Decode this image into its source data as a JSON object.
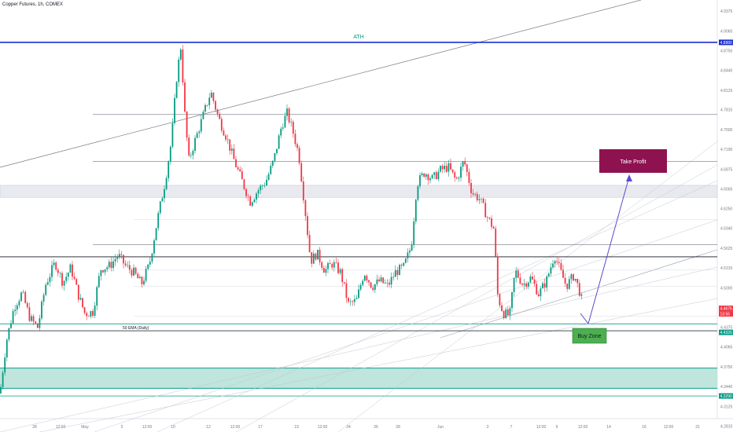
{
  "header": {
    "title": "Copper Futures, 1h, COMEX"
  },
  "colors": {
    "up": "#089981",
    "down": "#f23645",
    "ath_line": "#1a2ecf",
    "resistance": "#131722",
    "zone_fill": "#bfe5dc",
    "zone_line": "#0b9b86",
    "take_profit": "#8e1250",
    "buy_zone": "#4caf50",
    "arrow": "#5b4bd1",
    "grid_axis": "#787b86"
  },
  "annotations": {
    "ath": "ATH",
    "ema": "50 EMA (Daily)",
    "take_profit": "Take Profit",
    "buy_zone": "Buy Zone"
  },
  "price_tags": {
    "ath": "4.8880",
    "current": "4.4675",
    "countdown": "13:56",
    "ema": "4.4320",
    "bottom_zone": "4.3290"
  },
  "chart_data": {
    "type": "candlestick",
    "title": "Copper Futures, 1h, COMEX",
    "y_axis": {
      "ticks": [
        "4.9375",
        "4.9060",
        "4.8750",
        "4.8440",
        "4.8125",
        "4.7815",
        "4.7500",
        "4.7190",
        "4.6875",
        "4.6565",
        "4.6250",
        "4.5940",
        "4.5625",
        "4.5315",
        "4.5000",
        "4.4690",
        "4.4375",
        "4.4065",
        "4.3750",
        "4.3440",
        "4.3125",
        "4.2815"
      ],
      "range": [
        4.272,
        4.955
      ]
    },
    "x_axis": {
      "ticks": [
        "28",
        "12:00",
        "May",
        "5",
        "12:00",
        "10",
        "12",
        "12:00",
        "17",
        "19",
        "12:00",
        "24",
        "26",
        "28",
        "Jun",
        "3",
        "7",
        "12:00",
        "9",
        "12:00",
        "14",
        "16",
        "12:00",
        "21"
      ]
    },
    "levels": [
      {
        "name": "ATH",
        "price": 4.888
      },
      {
        "name": "resistance",
        "price": 4.774
      },
      {
        "name": "resistance",
        "price": 4.7
      },
      {
        "name": "resistance",
        "price": 4.568
      },
      {
        "name": "resistance",
        "price": 4.549
      },
      {
        "name": "50 EMA (Daily)",
        "price": 4.432
      }
    ],
    "zones": [
      {
        "name": "gray zone",
        "top": 4.662,
        "bottom": 4.643
      },
      {
        "name": "demand zone",
        "top": 4.373,
        "bottom": 4.341
      }
    ],
    "last_price": 4.4675,
    "path": [
      [
        0,
        4.333
      ],
      [
        8,
        4.415
      ],
      [
        18,
        4.47
      ],
      [
        28,
        4.492
      ],
      [
        38,
        4.452
      ],
      [
        48,
        4.437
      ],
      [
        58,
        4.505
      ],
      [
        70,
        4.54
      ],
      [
        80,
        4.508
      ],
      [
        90,
        4.532
      ],
      [
        100,
        4.487
      ],
      [
        108,
        4.459
      ],
      [
        118,
        4.462
      ],
      [
        128,
        4.53
      ],
      [
        140,
        4.535
      ],
      [
        150,
        4.552
      ],
      [
        160,
        4.534
      ],
      [
        170,
        4.524
      ],
      [
        180,
        4.506
      ],
      [
        190,
        4.537
      ],
      [
        200,
        4.607
      ],
      [
        210,
        4.668
      ],
      [
        218,
        4.733
      ],
      [
        225,
        4.838
      ],
      [
        230,
        4.882
      ],
      [
        235,
        4.774
      ],
      [
        240,
        4.701
      ],
      [
        248,
        4.733
      ],
      [
        258,
        4.771
      ],
      [
        268,
        4.81
      ],
      [
        278,
        4.768
      ],
      [
        288,
        4.738
      ],
      [
        298,
        4.7
      ],
      [
        308,
        4.668
      ],
      [
        318,
        4.636
      ],
      [
        328,
        4.654
      ],
      [
        338,
        4.668
      ],
      [
        348,
        4.701
      ],
      [
        358,
        4.756
      ],
      [
        365,
        4.776
      ],
      [
        372,
        4.749
      ],
      [
        380,
        4.71
      ],
      [
        388,
        4.622
      ],
      [
        395,
        4.542
      ],
      [
        403,
        4.555
      ],
      [
        413,
        4.527
      ],
      [
        423,
        4.539
      ],
      [
        433,
        4.524
      ],
      [
        443,
        4.474
      ],
      [
        453,
        4.479
      ],
      [
        463,
        4.525
      ],
      [
        473,
        4.502
      ],
      [
        483,
        4.511
      ],
      [
        493,
        4.503
      ],
      [
        503,
        4.525
      ],
      [
        513,
        4.532
      ],
      [
        523,
        4.566
      ],
      [
        530,
        4.664
      ],
      [
        540,
        4.683
      ],
      [
        550,
        4.672
      ],
      [
        560,
        4.686
      ],
      [
        570,
        4.691
      ],
      [
        580,
        4.669
      ],
      [
        590,
        4.701
      ],
      [
        600,
        4.651
      ],
      [
        610,
        4.64
      ],
      [
        620,
        4.611
      ],
      [
        628,
        4.593
      ],
      [
        633,
        4.485
      ],
      [
        640,
        4.46
      ],
      [
        648,
        4.456
      ],
      [
        655,
        4.527
      ],
      [
        665,
        4.505
      ],
      [
        675,
        4.516
      ],
      [
        685,
        4.49
      ],
      [
        695,
        4.512
      ],
      [
        705,
        4.552
      ],
      [
        712,
        4.528
      ],
      [
        720,
        4.503
      ],
      [
        730,
        4.52
      ],
      [
        738,
        4.49
      ],
      [
        742,
        4.4675
      ]
    ]
  }
}
